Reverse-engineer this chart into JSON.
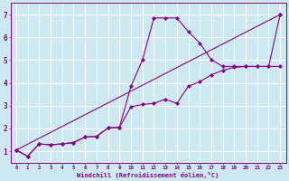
{
  "xlabel": "Windchill (Refroidissement éolien,°C)",
  "background_color": "#cce8f0",
  "grid_color": "#ffffff",
  "line_color": "#880088",
  "x_ticks": [
    0,
    1,
    2,
    3,
    4,
    5,
    6,
    7,
    8,
    9,
    10,
    11,
    12,
    13,
    14,
    15,
    16,
    17,
    18,
    19,
    20,
    21,
    22,
    23
  ],
  "y_ticks": [
    1,
    2,
    3,
    4,
    5,
    6,
    7
  ],
  "xlim": [
    -0.5,
    23.5
  ],
  "ylim": [
    0.5,
    7.5
  ],
  "series": [
    {
      "x": [
        0,
        1,
        2,
        3,
        4,
        5,
        6,
        7,
        8,
        9,
        10,
        11,
        12,
        13,
        14,
        15,
        16,
        17,
        18,
        19,
        20,
        21,
        22,
        23
      ],
      "y": [
        1.05,
        0.78,
        1.32,
        1.28,
        1.32,
        1.38,
        1.62,
        1.65,
        2.02,
        2.05,
        2.95,
        3.05,
        3.1,
        3.28,
        3.1,
        3.85,
        4.05,
        4.35,
        4.55,
        4.68,
        4.72,
        4.72,
        4.72,
        4.72
      ]
    },
    {
      "x": [
        0,
        23
      ],
      "y": [
        1.05,
        7.0
      ]
    },
    {
      "x": [
        0,
        1,
        2,
        3,
        4,
        5,
        6,
        7,
        8,
        9,
        10,
        11,
        12,
        13,
        14,
        15,
        16,
        17,
        18,
        19,
        20,
        21,
        22,
        23
      ],
      "y": [
        1.05,
        0.78,
        1.32,
        1.28,
        1.32,
        1.38,
        1.62,
        1.65,
        2.02,
        2.05,
        3.85,
        5.0,
        6.85,
        6.85,
        6.85,
        6.25,
        5.75,
        5.02,
        4.72,
        4.72,
        4.72,
        4.72,
        4.72,
        7.0
      ]
    }
  ]
}
